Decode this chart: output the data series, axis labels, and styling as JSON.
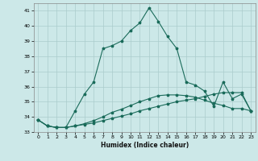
{
  "xlabel": "Humidex (Indice chaleur)",
  "background_color": "#cce8e8",
  "grid_color": "#aacccc",
  "line_color": "#1a6b5a",
  "xlim": [
    -0.5,
    23.5
  ],
  "ylim": [
    33,
    41.5
  ],
  "yticks": [
    33,
    34,
    35,
    36,
    37,
    38,
    39,
    40,
    41
  ],
  "xticks": [
    0,
    1,
    2,
    3,
    4,
    5,
    6,
    7,
    8,
    9,
    10,
    11,
    12,
    13,
    14,
    15,
    16,
    17,
    18,
    19,
    20,
    21,
    22,
    23
  ],
  "series": {
    "line1_x": [
      0,
      1,
      2,
      3,
      4,
      5,
      6,
      7,
      8,
      9,
      10,
      11,
      12,
      13,
      14,
      15,
      16,
      17,
      18,
      19,
      20,
      21,
      22,
      23
    ],
    "line1_y": [
      33.8,
      33.4,
      33.3,
      33.3,
      33.4,
      33.5,
      33.6,
      33.75,
      33.9,
      34.05,
      34.2,
      34.4,
      34.55,
      34.7,
      34.85,
      35.0,
      35.1,
      35.2,
      35.35,
      35.5,
      35.6,
      35.6,
      35.6,
      34.4
    ],
    "line2_x": [
      0,
      1,
      2,
      3,
      4,
      5,
      6,
      7,
      8,
      9,
      10,
      11,
      12,
      13,
      14,
      15,
      16,
      17,
      18,
      19,
      20,
      21,
      22,
      23
    ],
    "line2_y": [
      33.8,
      33.4,
      33.3,
      33.3,
      33.4,
      33.55,
      33.75,
      34.0,
      34.3,
      34.5,
      34.75,
      35.0,
      35.2,
      35.4,
      35.45,
      35.45,
      35.4,
      35.3,
      35.1,
      34.9,
      34.75,
      34.55,
      34.55,
      34.4
    ],
    "line3_x": [
      0,
      1,
      2,
      3,
      4,
      5,
      6,
      7,
      8,
      9,
      10,
      11,
      12,
      13,
      14,
      15,
      16,
      17,
      18,
      19,
      20,
      21,
      22,
      23
    ],
    "line3_y": [
      33.8,
      33.4,
      33.3,
      33.3,
      34.4,
      35.5,
      36.3,
      38.5,
      38.7,
      39.0,
      39.7,
      40.2,
      41.2,
      40.3,
      39.3,
      38.5,
      36.3,
      36.1,
      35.7,
      34.7,
      36.3,
      35.2,
      35.5,
      34.4
    ]
  }
}
